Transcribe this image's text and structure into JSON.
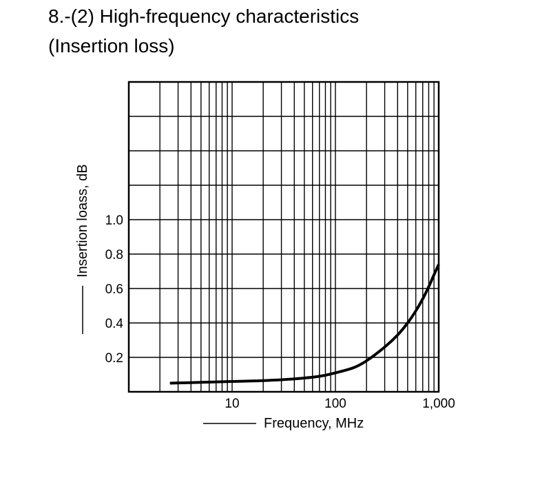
{
  "title": {
    "line1": "8.-(2) High-frequency characteristics",
    "line2": "(Insertion loss)"
  },
  "chart_data": {
    "type": "line",
    "xlabel": "Frequency, MHz",
    "ylabel": "Insertion loass, dB",
    "x_scale": "log",
    "xlim": [
      1,
      1000
    ],
    "ylim": [
      0,
      1.8
    ],
    "x_ticks": [
      {
        "value": 10,
        "label": "10"
      },
      {
        "value": 100,
        "label": "100"
      },
      {
        "value": 1000,
        "label": "1,000"
      }
    ],
    "y_ticks": [
      {
        "value": 0.2,
        "label": "0.2"
      },
      {
        "value": 0.4,
        "label": "0.4"
      },
      {
        "value": 0.6,
        "label": "0.6"
      },
      {
        "value": 0.8,
        "label": "0.8"
      },
      {
        "value": 1.0,
        "label": "1.0"
      }
    ],
    "grid": true,
    "series": [
      {
        "x": [
          2.5,
          5,
          10,
          20,
          40,
          70,
          100,
          150,
          200,
          300,
          400,
          500,
          600,
          700,
          800,
          900,
          1000
        ],
        "y": [
          0.05,
          0.055,
          0.06,
          0.065,
          0.075,
          0.09,
          0.11,
          0.14,
          0.18,
          0.26,
          0.33,
          0.4,
          0.47,
          0.54,
          0.61,
          0.68,
          0.74
        ]
      }
    ],
    "colors": {
      "line": "#000000",
      "grid": "#000000"
    }
  }
}
